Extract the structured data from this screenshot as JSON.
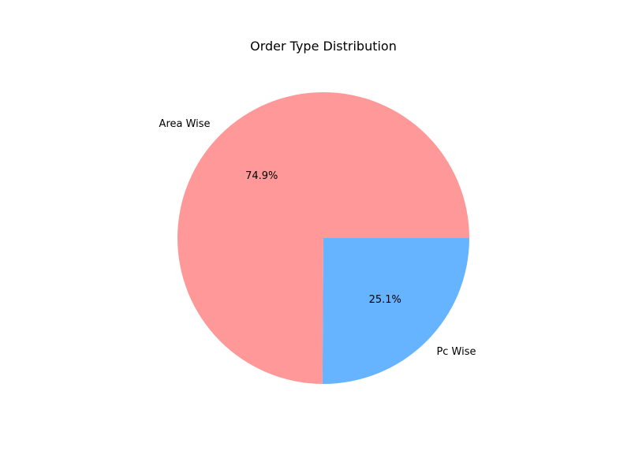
{
  "chart_data": {
    "type": "pie",
    "title": "Order Type Distribution",
    "slices": [
      {
        "label": "Area Wise",
        "value": 74.9,
        "pct_label": "74.9%",
        "color": "#ff9999"
      },
      {
        "label": "Pc Wise",
        "value": 25.1,
        "pct_label": "25.1%",
        "color": "#66b3ff"
      }
    ],
    "start_angle": "right",
    "direction": "counterclockwise",
    "legend": "none"
  }
}
